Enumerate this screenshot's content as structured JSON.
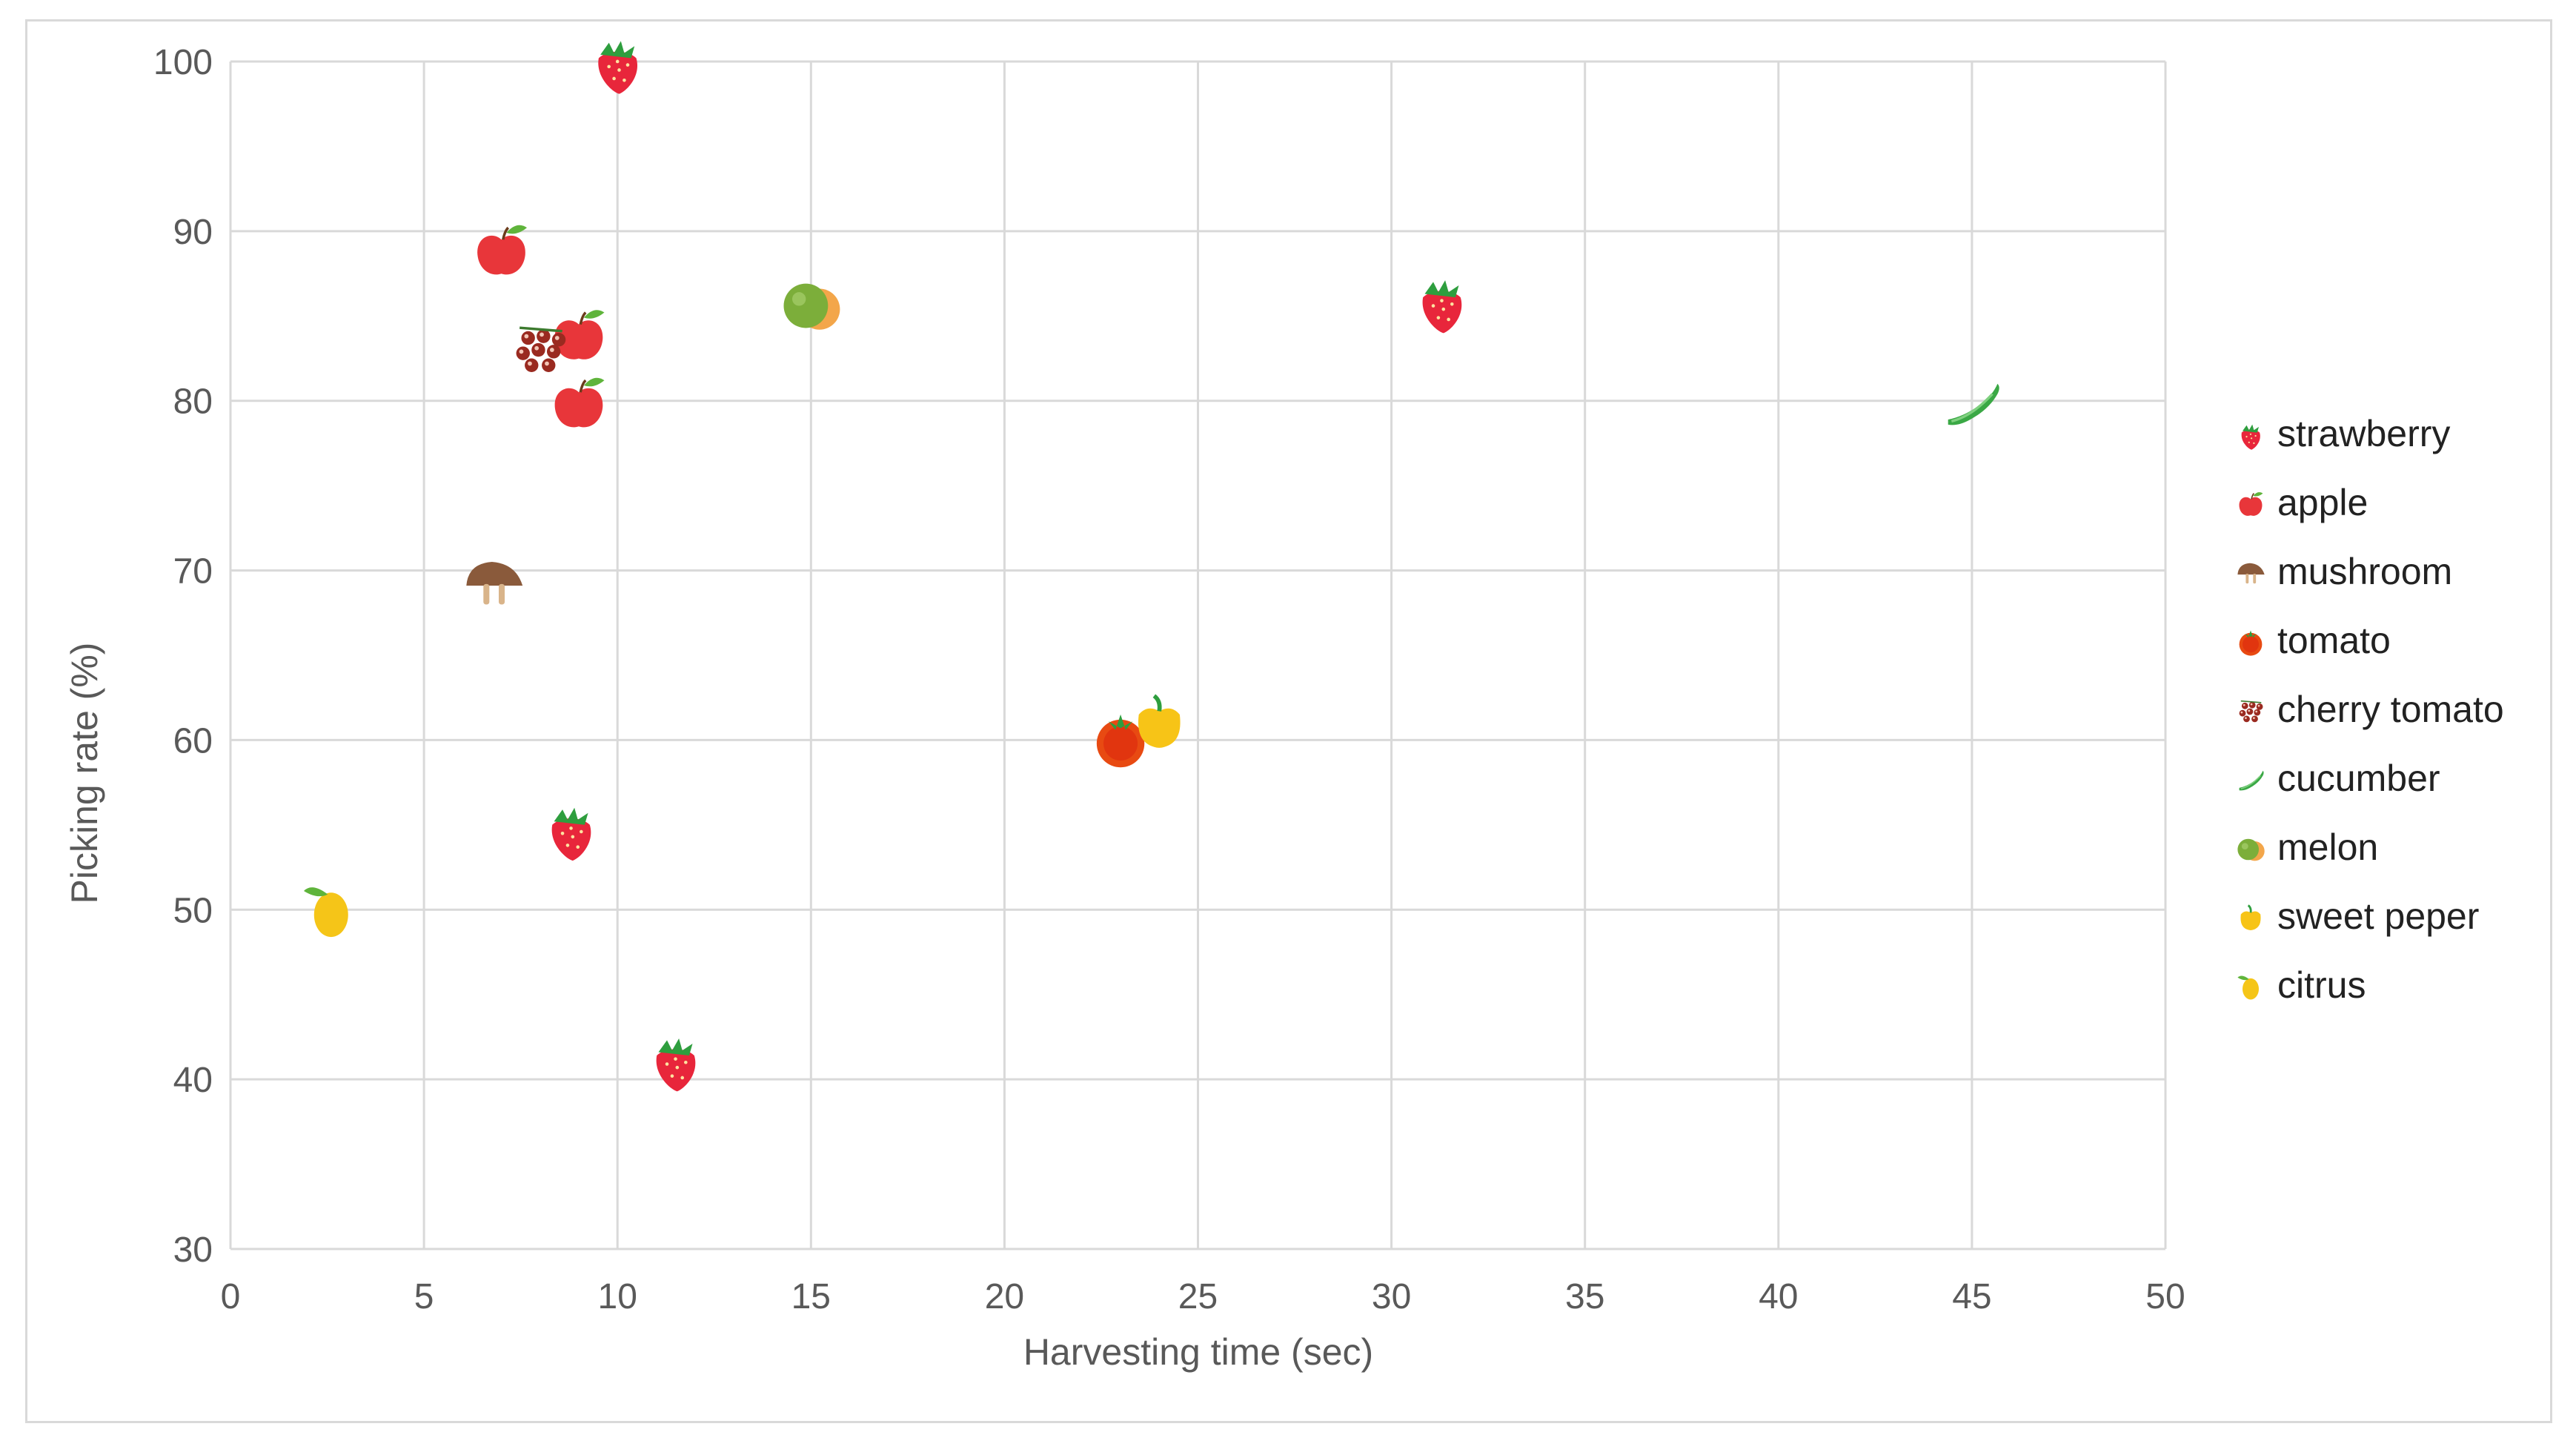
{
  "chart_data": {
    "type": "scatter",
    "title": "",
    "xlabel": "Harvesting time (sec)",
    "ylabel": "Picking rate (%)",
    "xlim": [
      0,
      50
    ],
    "ylim": [
      30,
      100
    ],
    "xticks": [
      "0",
      "5",
      "10",
      "15",
      "20",
      "25",
      "30",
      "35",
      "40",
      "45",
      "50"
    ],
    "yticks": [
      "30",
      "40",
      "50",
      "60",
      "70",
      "80",
      "90",
      "100"
    ],
    "grid": true,
    "legend_position": "right",
    "series": [
      {
        "name": "strawberry",
        "icon": "strawberry-icon",
        "color": "#e8263b",
        "points": [
          {
            "x": 10,
            "y": 99.8
          },
          {
            "x": 31.3,
            "y": 85.7
          },
          {
            "x": 8.8,
            "y": 54.6
          },
          {
            "x": 11.5,
            "y": 41
          }
        ]
      },
      {
        "name": "apple",
        "icon": "apple-icon",
        "color": "#e8363a",
        "points": [
          {
            "x": 7,
            "y": 88.8
          },
          {
            "x": 9,
            "y": 83.8
          },
          {
            "x": 9,
            "y": 79.8
          }
        ]
      },
      {
        "name": "mushroom",
        "icon": "mushroom-icon",
        "color": "#8a5a3b",
        "points": [
          {
            "x": 6.8,
            "y": 69.2
          }
        ]
      },
      {
        "name": "tomato",
        "icon": "tomato-icon",
        "color": "#e84a12",
        "points": [
          {
            "x": 23,
            "y": 60
          }
        ]
      },
      {
        "name": "cherry tomato",
        "icon": "cherry-tomato-icon",
        "color": "#9a2a20",
        "points": [
          {
            "x": 8,
            "y": 83
          }
        ]
      },
      {
        "name": "cucumber",
        "icon": "cucumber-icon",
        "color": "#3aa845",
        "points": [
          {
            "x": 45,
            "y": 79.8
          }
        ]
      },
      {
        "name": "melon",
        "icon": "melon-icon",
        "color": "#7cae3a",
        "points": [
          {
            "x": 15,
            "y": 85.6
          }
        ]
      },
      {
        "name": "sweet peper",
        "icon": "sweet-pepper-icon",
        "color": "#f7c417",
        "points": [
          {
            "x": 24,
            "y": 61
          }
        ]
      },
      {
        "name": "citrus",
        "icon": "citrus-icon",
        "color": "#f5c518",
        "points": [
          {
            "x": 2.6,
            "y": 49.9
          }
        ]
      }
    ]
  }
}
